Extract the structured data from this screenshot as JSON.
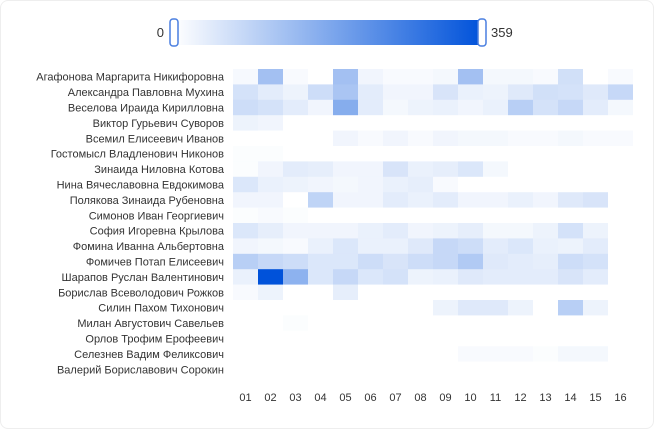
{
  "chart_data": {
    "type": "heatmap",
    "title": "",
    "xlabel": "",
    "ylabel": "",
    "rows": [
      "Агафонова Маргарита Никифоровна",
      "Александра Павловна Мухина",
      "Веселова Ираида Кирилловна",
      "Виктор Гурьевич Суворов",
      "Всемил Елисеевич Иванов",
      "Гостомысл Владленович Никонов",
      "Зинаида Ниловна Котова",
      "Нина Вячеславовна Евдокимова",
      "Полякова Зинаида Рубеновна",
      "Симонов Иван Георгиевич",
      "София Игоревна Крылова",
      "Фомина Иванна Альбертовна",
      "Фомичев Потап Елисеевич",
      "Шарапов Руслан Валентинович",
      "Борислав Всеволодович Рожков",
      "Силин Пахом Тихонович",
      "Милан Августович Савельев",
      "Орлов Трофим Ерофеевич",
      "Селезнев Вадим Феликсович",
      "Валерий Бориславович Сорокин"
    ],
    "columns": [
      "01",
      "02",
      "03",
      "04",
      "05",
      "06",
      "07",
      "08",
      "09",
      "10",
      "11",
      "12",
      "13",
      "14",
      "15",
      "16"
    ],
    "values": [
      [
        12,
        130,
        10,
        0,
        130,
        20,
        10,
        10,
        15,
        130,
        15,
        15,
        10,
        65,
        0,
        10
      ],
      [
        60,
        40,
        25,
        70,
        120,
        40,
        20,
        20,
        55,
        30,
        25,
        45,
        65,
        60,
        45,
        80
      ],
      [
        70,
        60,
        40,
        20,
        170,
        40,
        15,
        25,
        30,
        20,
        30,
        100,
        60,
        80,
        40,
        15
      ],
      [
        25,
        20,
        0,
        0,
        0,
        0,
        0,
        0,
        0,
        0,
        0,
        0,
        0,
        0,
        0,
        0
      ],
      [
        0,
        0,
        0,
        0,
        20,
        10,
        20,
        10,
        20,
        15,
        15,
        10,
        10,
        15,
        10,
        10
      ],
      [
        5,
        5,
        0,
        0,
        0,
        0,
        0,
        0,
        0,
        0,
        0,
        0,
        0,
        0,
        0,
        0
      ],
      [
        5,
        20,
        40,
        35,
        20,
        20,
        55,
        30,
        35,
        50,
        15,
        0,
        0,
        0,
        0,
        0
      ],
      [
        50,
        30,
        25,
        20,
        15,
        20,
        30,
        35,
        10,
        0,
        0,
        0,
        0,
        0,
        0,
        0
      ],
      [
        20,
        20,
        0,
        90,
        20,
        20,
        40,
        30,
        40,
        20,
        20,
        30,
        20,
        45,
        55,
        0
      ],
      [
        5,
        10,
        5,
        0,
        0,
        0,
        0,
        0,
        0,
        0,
        0,
        0,
        0,
        0,
        0,
        0
      ],
      [
        50,
        35,
        20,
        20,
        20,
        30,
        40,
        20,
        25,
        35,
        15,
        15,
        25,
        60,
        25,
        0
      ],
      [
        20,
        15,
        10,
        30,
        50,
        30,
        30,
        45,
        80,
        70,
        40,
        50,
        30,
        25,
        40,
        0
      ],
      [
        100,
        80,
        70,
        50,
        50,
        70,
        55,
        70,
        80,
        110,
        45,
        40,
        35,
        70,
        60,
        0
      ],
      [
        30,
        359,
        160,
        50,
        80,
        50,
        60,
        25,
        30,
        45,
        40,
        40,
        40,
        55,
        40,
        0
      ],
      [
        10,
        25,
        0,
        0,
        35,
        0,
        0,
        0,
        0,
        0,
        0,
        0,
        0,
        0,
        0,
        0
      ],
      [
        0,
        0,
        0,
        0,
        0,
        0,
        0,
        0,
        25,
        45,
        45,
        25,
        0,
        100,
        25,
        0
      ],
      [
        0,
        0,
        5,
        0,
        0,
        0,
        0,
        0,
        0,
        0,
        0,
        0,
        0,
        0,
        0,
        0
      ],
      [
        0,
        0,
        0,
        0,
        0,
        0,
        0,
        0,
        0,
        0,
        0,
        0,
        0,
        0,
        0,
        0
      ],
      [
        0,
        0,
        0,
        0,
        0,
        0,
        0,
        0,
        0,
        10,
        10,
        10,
        5,
        15,
        15,
        0
      ],
      [
        0,
        0,
        0,
        0,
        0,
        0,
        0,
        0,
        0,
        0,
        0,
        0,
        0,
        0,
        0,
        0
      ]
    ],
    "scale": {
      "min": 0,
      "max": 359,
      "min_label": "0",
      "max_label": "359",
      "low_color": "#ffffff",
      "high_color": "#0052da"
    }
  }
}
